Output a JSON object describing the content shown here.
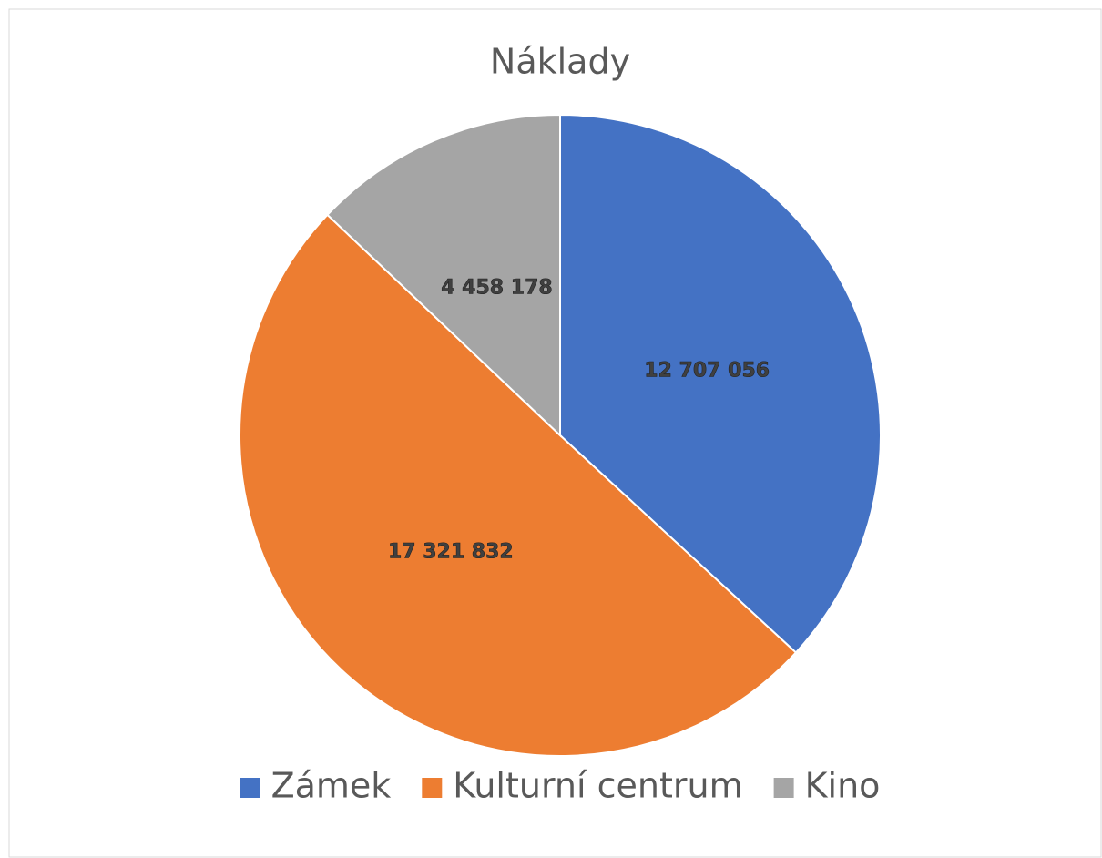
{
  "chart_data": {
    "type": "pie",
    "title": "Náklady",
    "categories": [
      "Zámek",
      "Kulturní centrum",
      "Kino"
    ],
    "values": [
      12707056,
      17321832,
      4458178
    ],
    "value_labels": [
      "12 707 056",
      "17 321 832",
      "4 458 178"
    ],
    "colors": [
      "#4472c4",
      "#ed7d31",
      "#a5a5a5"
    ],
    "legend": "bottom"
  }
}
